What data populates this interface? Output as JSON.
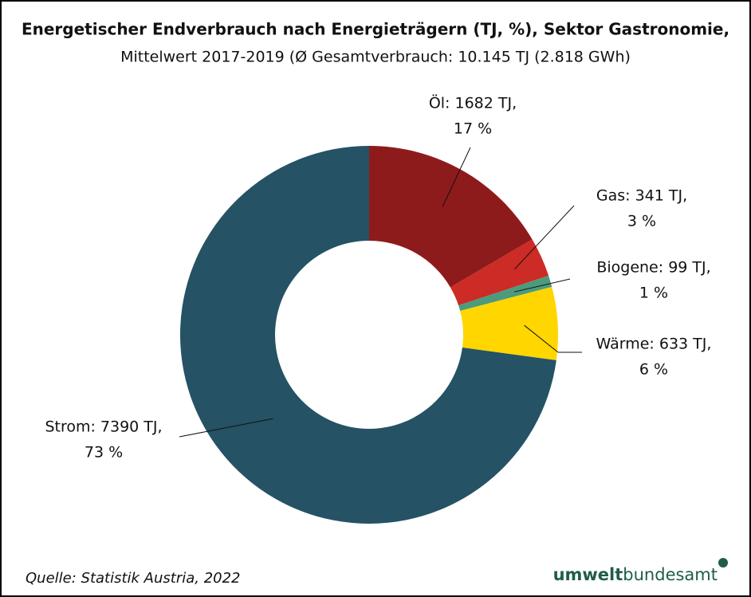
{
  "chart_data": {
    "type": "donut",
    "title": "Energetischer Endverbrauch nach Energieträgern (TJ, %), Sektor Gastronomie,",
    "subtitle": "Mittelwert 2017-2019 (Ø Gesamtverbrauch: 10.145 TJ (2.818 GWh)",
    "values": [
      1682,
      341,
      99,
      633,
      7390
    ],
    "value_labels": [
      [
        "Öl: 1682 TJ,",
        "17 %"
      ],
      [
        "Gas: 341 TJ,",
        "3 %"
      ],
      [
        "Biogene: 99 TJ,",
        "1 %"
      ],
      [
        "Wärme: 633 TJ,",
        "6 %"
      ],
      [
        "Strom: 7390 TJ,",
        "73 %"
      ]
    ],
    "colors": [
      "#8e1b1b",
      "#cc2b26",
      "#4c9b7d",
      "#ffd600",
      "#255265"
    ],
    "source": "Quelle: Statistik Austria, 2022",
    "logo": [
      "umwelt",
      "bundesamt"
    ]
  }
}
